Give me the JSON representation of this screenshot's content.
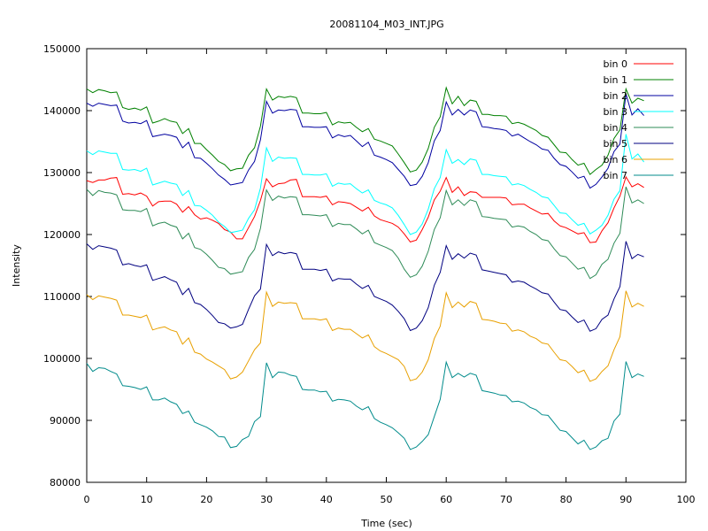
{
  "chart_data": {
    "type": "line",
    "title": "20081104_M03_INT.JPG",
    "xlabel": "Time (sec)",
    "ylabel": "Intensity",
    "xlim": [
      0,
      100
    ],
    "ylim": [
      80000,
      150000
    ],
    "xticks": [
      "0",
      "10",
      "20",
      "30",
      "40",
      "50",
      "60",
      "70",
      "80",
      "90",
      "100"
    ],
    "yticks": [
      "80000",
      "90000",
      "100000",
      "110000",
      "120000",
      "130000",
      "140000",
      "150000"
    ],
    "grid": false,
    "legend_position": "top-right",
    "x": [
      0,
      1,
      2,
      3,
      4,
      5,
      6,
      7,
      8,
      9,
      10,
      11,
      12,
      13,
      14,
      15,
      16,
      17,
      18,
      19,
      20,
      21,
      22,
      23,
      24,
      25,
      26,
      27,
      28,
      29,
      30,
      31,
      32,
      33,
      34,
      35,
      36,
      37,
      38,
      39,
      40,
      41,
      42,
      43,
      44,
      45,
      46,
      47,
      48,
      49,
      50,
      51,
      52,
      53,
      54,
      55,
      56,
      57,
      58,
      59,
      60,
      61,
      62,
      63,
      64,
      65,
      66,
      67,
      68,
      69,
      70,
      71,
      72,
      73,
      74,
      75,
      76,
      77,
      78,
      79,
      80,
      81,
      82,
      83,
      84,
      85,
      86,
      87,
      88,
      89,
      90,
      91,
      92,
      93
    ],
    "series": [
      {
        "name": "bin 0",
        "color": "#ff0000",
        "values": [
          128700,
          128400,
          128800,
          128800,
          129100,
          129200,
          126500,
          126600,
          126400,
          126700,
          126200,
          124600,
          125300,
          125400,
          125400,
          124900,
          123600,
          124500,
          123200,
          122500,
          122700,
          122300,
          121800,
          120800,
          120400,
          119300,
          119300,
          121100,
          122900,
          125500,
          129000,
          127700,
          128200,
          128300,
          128800,
          128900,
          126100,
          126100,
          126100,
          126000,
          126200,
          124800,
          125300,
          125200,
          125000,
          124400,
          123800,
          124400,
          123000,
          122400,
          122100,
          121800,
          121200,
          120100,
          118800,
          119100,
          120800,
          122800,
          125600,
          127000,
          129200,
          126800,
          127700,
          126300,
          126900,
          126800,
          126000,
          126000,
          126000,
          126000,
          125900,
          124800,
          124900,
          124900,
          124300,
          123800,
          123300,
          123400,
          122200,
          121400,
          121100,
          120600,
          120100,
          120300,
          118700,
          118800,
          120600,
          121900,
          124300,
          126200,
          129300,
          127700,
          128200,
          127600
        ]
      },
      {
        "name": "bin 1",
        "color": "#008000",
        "values": [
          143500,
          142900,
          143400,
          143200,
          142900,
          143000,
          140500,
          140200,
          140400,
          140100,
          140600,
          138000,
          138300,
          138700,
          138300,
          138100,
          136300,
          137100,
          134700,
          134700,
          133700,
          132800,
          131800,
          131300,
          130300,
          130600,
          130700,
          132800,
          134000,
          137500,
          143500,
          141700,
          142300,
          142100,
          142300,
          142100,
          139600,
          139600,
          139500,
          139500,
          139700,
          137700,
          138200,
          138000,
          138100,
          137300,
          136600,
          137100,
          135400,
          135100,
          134700,
          134300,
          133000,
          131600,
          130100,
          130400,
          131700,
          133900,
          137300,
          139000,
          143700,
          141100,
          142300,
          140800,
          141700,
          141500,
          139400,
          139400,
          139200,
          139200,
          139100,
          137900,
          138100,
          137800,
          137300,
          136800,
          136000,
          135700,
          134500,
          133300,
          133200,
          132100,
          131200,
          131500,
          129700,
          130500,
          131200,
          132800,
          135500,
          136900,
          143500,
          141200,
          142000,
          141600
        ]
      },
      {
        "name": "bin 2",
        "color": "#0000a0",
        "values": [
          141200,
          140700,
          141200,
          141000,
          140800,
          140900,
          138300,
          138000,
          138100,
          137900,
          138400,
          135800,
          136000,
          136200,
          136000,
          135700,
          134000,
          134900,
          132400,
          132300,
          131500,
          130600,
          129600,
          128900,
          128000,
          128200,
          128400,
          130400,
          131800,
          135300,
          141500,
          139600,
          140100,
          140000,
          140200,
          140100,
          137400,
          137400,
          137300,
          137300,
          137400,
          135600,
          136100,
          135800,
          136000,
          135100,
          134200,
          134900,
          132800,
          132500,
          132100,
          131600,
          130500,
          129400,
          127900,
          128100,
          129400,
          131600,
          135100,
          136800,
          141400,
          139300,
          140200,
          139300,
          140100,
          139800,
          137400,
          137300,
          137100,
          137000,
          136800,
          135900,
          136200,
          135600,
          135000,
          134500,
          133800,
          133600,
          132300,
          131300,
          131000,
          130100,
          129100,
          129400,
          127500,
          128100,
          129300,
          130700,
          133400,
          134600,
          142700,
          139300,
          140300,
          139200
        ]
      },
      {
        "name": "bin 3",
        "color": "#00ffff",
        "values": [
          133500,
          132900,
          133500,
          133300,
          133100,
          133100,
          130500,
          130400,
          130500,
          130200,
          130700,
          128000,
          128300,
          128600,
          128300,
          128100,
          126300,
          127100,
          124700,
          124600,
          123900,
          123100,
          122000,
          121300,
          120300,
          120500,
          120700,
          122600,
          124000,
          127500,
          134000,
          131800,
          132500,
          132300,
          132400,
          132300,
          129700,
          129700,
          129600,
          129600,
          129800,
          127800,
          128300,
          128100,
          128200,
          127400,
          126700,
          127200,
          125500,
          125100,
          124800,
          124300,
          123100,
          121600,
          120000,
          120400,
          121700,
          124100,
          127400,
          129200,
          133700,
          131500,
          132100,
          131300,
          132200,
          132000,
          129700,
          129700,
          129500,
          129400,
          129300,
          128000,
          128200,
          127900,
          127300,
          126800,
          126100,
          125900,
          124700,
          123500,
          123400,
          122400,
          121500,
          121800,
          120100,
          120700,
          121500,
          123100,
          125700,
          127100,
          136200,
          132200,
          133000,
          131700
        ]
      },
      {
        "name": "bin 4",
        "color": "#2e8b57",
        "values": [
          127300,
          126300,
          127100,
          126800,
          126700,
          126400,
          124000,
          123900,
          123900,
          123700,
          124200,
          121400,
          121800,
          122000,
          121500,
          121200,
          119300,
          120200,
          117900,
          117600,
          116800,
          115800,
          114700,
          114500,
          113600,
          113800,
          114000,
          116300,
          117600,
          121000,
          127200,
          125500,
          126200,
          125900,
          126100,
          126000,
          123200,
          123200,
          123100,
          123000,
          123200,
          121300,
          121800,
          121600,
          121600,
          120900,
          120100,
          120700,
          118700,
          118300,
          117900,
          117400,
          116200,
          114400,
          113100,
          113500,
          114900,
          117300,
          120800,
          122700,
          127100,
          124800,
          125600,
          124700,
          125600,
          125300,
          122900,
          122800,
          122600,
          122500,
          122400,
          121200,
          121400,
          121200,
          120500,
          120000,
          119200,
          119000,
          117700,
          116600,
          116400,
          115400,
          114400,
          114700,
          112900,
          113500,
          115200,
          116000,
          118600,
          120200,
          127700,
          125100,
          125600,
          125000
        ]
      },
      {
        "name": "bin 5",
        "color": "#000080",
        "values": [
          118500,
          117600,
          118200,
          118000,
          117800,
          117500,
          115100,
          115300,
          115000,
          114800,
          115100,
          112600,
          112900,
          113200,
          112700,
          112300,
          110300,
          111300,
          109000,
          108700,
          107900,
          106900,
          105800,
          105600,
          104900,
          105100,
          105500,
          107900,
          110100,
          111200,
          118400,
          116600,
          117200,
          116900,
          117100,
          116900,
          114400,
          114400,
          114400,
          114200,
          114400,
          112500,
          112900,
          112800,
          112800,
          112000,
          111300,
          111800,
          110000,
          109600,
          109200,
          108600,
          107600,
          106400,
          104500,
          104900,
          106100,
          108200,
          111800,
          113900,
          118200,
          116000,
          116900,
          116200,
          117000,
          116700,
          114300,
          114100,
          113900,
          113700,
          113500,
          112300,
          112500,
          112300,
          111700,
          111200,
          110600,
          110400,
          109100,
          107900,
          107700,
          106700,
          105800,
          106200,
          104400,
          104800,
          106300,
          107000,
          109600,
          111600,
          118900,
          116100,
          116800,
          116400
        ]
      },
      {
        "name": "bin 6",
        "color": "#e8a000",
        "values": [
          110300,
          109500,
          110100,
          109900,
          109700,
          109400,
          107000,
          107000,
          106800,
          106600,
          107000,
          104600,
          104900,
          105100,
          104600,
          104300,
          102300,
          103300,
          101000,
          100700,
          99900,
          99400,
          98800,
          98200,
          96700,
          97000,
          97800,
          99600,
          101400,
          102500,
          110700,
          108400,
          109100,
          108900,
          109000,
          108900,
          106400,
          106400,
          106400,
          106200,
          106400,
          104500,
          104900,
          104700,
          104700,
          104000,
          103300,
          103800,
          101900,
          101200,
          100800,
          100300,
          99800,
          98700,
          96400,
          96700,
          97800,
          99800,
          103200,
          105200,
          110600,
          108200,
          109100,
          108300,
          109200,
          108900,
          106300,
          106200,
          106000,
          105700,
          105600,
          104400,
          104600,
          104300,
          103600,
          103200,
          102500,
          102300,
          101000,
          99800,
          99600,
          98700,
          97700,
          98100,
          96300,
          96700,
          97900,
          98800,
          101400,
          103500,
          110900,
          108300,
          108900,
          108400
        ]
      },
      {
        "name": "bin 7",
        "color": "#008b8b",
        "values": [
          99200,
          97900,
          98500,
          98400,
          97900,
          97500,
          95600,
          95500,
          95300,
          95000,
          95400,
          93300,
          93300,
          93600,
          93000,
          92600,
          91100,
          91500,
          89700,
          89300,
          88900,
          88300,
          87400,
          87300,
          85600,
          85800,
          86900,
          87400,
          89800,
          90600,
          99300,
          96900,
          97800,
          97700,
          97300,
          97100,
          95000,
          94900,
          94900,
          94600,
          94700,
          93100,
          93400,
          93300,
          93100,
          92300,
          91700,
          92200,
          90300,
          89700,
          89300,
          88800,
          88000,
          87100,
          85300,
          85700,
          86600,
          87700,
          90600,
          93400,
          99400,
          96900,
          97600,
          97000,
          97600,
          97300,
          94800,
          94600,
          94400,
          94100,
          94000,
          93000,
          93100,
          92800,
          92100,
          91700,
          90900,
          90800,
          89600,
          88400,
          88200,
          87200,
          86200,
          86800,
          85300,
          85700,
          86700,
          87100,
          89900,
          91000,
          99500,
          96900,
          97500,
          97100
        ]
      }
    ]
  }
}
